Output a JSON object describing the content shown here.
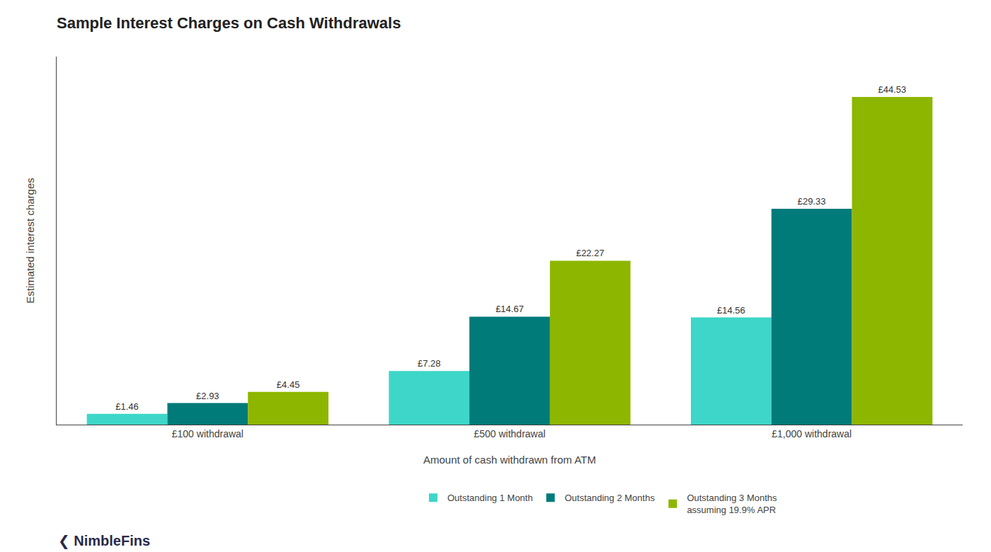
{
  "chart_data": {
    "type": "bar",
    "title": "Sample Interest Charges on Cash Withdrawals",
    "xlabel": "Amount of cash withdrawn from ATM",
    "ylabel": "Estimated interest charges",
    "categories": [
      "£100 withdrawal",
      "£500 withdrawal",
      "£1,000 withdrawal"
    ],
    "series": [
      {
        "name": "Outstanding 1 Month",
        "color": "#3DD6C8",
        "values": [
          1.46,
          7.28,
          14.56
        ],
        "value_labels": [
          "£1.46",
          "£7.28",
          "£14.56"
        ]
      },
      {
        "name": "Outstanding 2 Months",
        "color": "#007B7A",
        "values": [
          2.93,
          14.67,
          29.33
        ],
        "value_labels": [
          "£2.93",
          "£14.67",
          "£29.33"
        ]
      },
      {
        "name": "Outstanding 3 Months\nassuming 19.9% APR",
        "color": "#8DB600",
        "values": [
          4.45,
          22.27,
          44.53
        ],
        "value_labels": [
          "£4.45",
          "£22.27",
          "£44.53"
        ]
      }
    ],
    "ylim": [
      0,
      50
    ],
    "tick_labels": "x",
    "data_labels": true,
    "grid": false,
    "legend": "bottom",
    "annotations": [
      "❮ NimbleFins"
    ]
  }
}
